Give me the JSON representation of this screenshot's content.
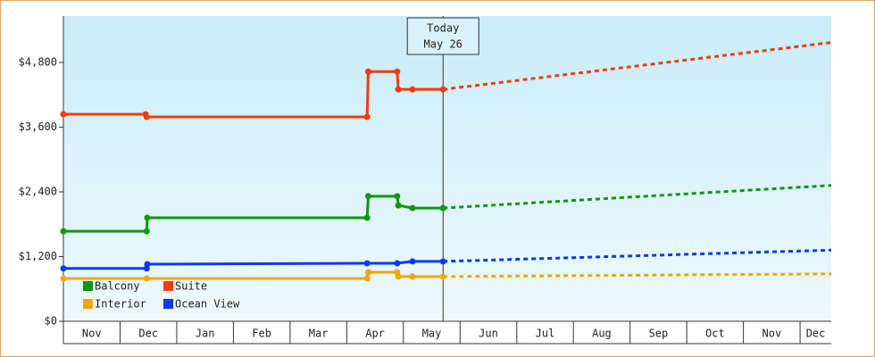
{
  "chart_data": {
    "type": "line",
    "xlim": [
      0,
      13.55
    ],
    "xticks": [
      {
        "value": 0,
        "label": "Nov"
      },
      {
        "value": 1,
        "label": "Dec"
      },
      {
        "value": 2,
        "label": "Jan"
      },
      {
        "value": 3,
        "label": "Feb"
      },
      {
        "value": 4,
        "label": "Mar"
      },
      {
        "value": 5,
        "label": "Apr"
      },
      {
        "value": 6,
        "label": "May"
      },
      {
        "value": 7,
        "label": "Jun"
      },
      {
        "value": 8,
        "label": "Jul"
      },
      {
        "value": 9,
        "label": "Aug"
      },
      {
        "value": 10,
        "label": "Sep"
      },
      {
        "value": 11,
        "label": "Oct"
      },
      {
        "value": 12,
        "label": "Nov"
      },
      {
        "value": 13,
        "label": "Dec"
      }
    ],
    "ylim": [
      0,
      5660
    ],
    "yticks": [
      {
        "value": 0,
        "label": "$0"
      },
      {
        "value": 1200,
        "label": "$1,200"
      },
      {
        "value": 2400,
        "label": "$2,400"
      },
      {
        "value": 3600,
        "label": "$3,600"
      },
      {
        "value": 4800,
        "label": "$4,800"
      }
    ],
    "annotation": {
      "x": 6.7,
      "label": [
        "Today",
        "May 26"
      ]
    },
    "legend": "lower left",
    "series": [
      {
        "name": "Balcony",
        "color": "#0a9a0a",
        "x": [
          0,
          1.47,
          1.48,
          5.36,
          5.38,
          5.89,
          5.91,
          6.16,
          6.7,
          13.55
        ],
        "values": [
          1670,
          1670,
          1920,
          1920,
          2320,
          2320,
          2150,
          2100,
          2100,
          2520
        ]
      },
      {
        "name": "Suite",
        "color": "#f03c0a",
        "x": [
          0,
          1.45,
          1.47,
          5.36,
          5.38,
          5.89,
          5.91,
          6.16,
          6.7,
          13.55
        ],
        "values": [
          3840,
          3840,
          3790,
          3790,
          4630,
          4630,
          4300,
          4300,
          4300,
          5170
        ]
      },
      {
        "name": "Interior",
        "color": "#f5a500",
        "x": [
          0,
          1.47,
          5.36,
          5.38,
          5.89,
          5.91,
          6.16,
          6.7,
          13.55
        ],
        "values": [
          795,
          795,
          795,
          910,
          910,
          830,
          830,
          830,
          880
        ]
      },
      {
        "name": "Ocean View",
        "color": "#0a3af0",
        "x": [
          0,
          1.47,
          1.48,
          5.36,
          5.89,
          6.16,
          6.7,
          13.55
        ],
        "values": [
          980,
          980,
          1060,
          1075,
          1075,
          1110,
          1110,
          1320
        ]
      }
    ]
  }
}
